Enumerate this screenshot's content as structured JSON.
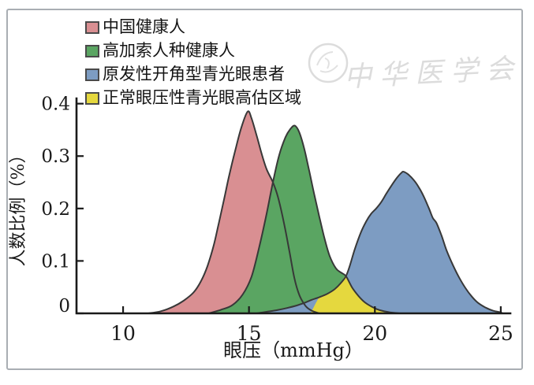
{
  "watermark": {
    "text": "中华医学会",
    "color": "#dcdcdc"
  },
  "chart_data": {
    "type": "area",
    "title": "",
    "xlabel": "眼压（mmHg）",
    "ylabel": "人数比例（%）",
    "xlim": [
      8.15,
      25.38
    ],
    "ylim": [
      0,
      0.41
    ],
    "grid": false,
    "legend_position": "top-left",
    "axis_color": "#1a1a1a",
    "outline_color": "#383838",
    "xticks": [
      10,
      15,
      20,
      25
    ],
    "xtick_labels": [
      "10",
      "15",
      "20",
      "25"
    ],
    "yticks": [
      0,
      0.1,
      0.2,
      0.3,
      0.4
    ],
    "ytick_labels": [
      "0",
      "0.1",
      "0.2",
      "0.3",
      "0.4"
    ],
    "series": [
      {
        "name": "中国健康人",
        "fill": "#d98f92",
        "outlined": true,
        "points": [
          [
            11.0,
            0
          ],
          [
            11.5,
            0.004
          ],
          [
            12.0,
            0.013
          ],
          [
            12.4,
            0.024
          ],
          [
            12.8,
            0.04
          ],
          [
            13.1,
            0.062
          ],
          [
            13.35,
            0.09
          ],
          [
            13.6,
            0.13
          ],
          [
            13.8,
            0.172
          ],
          [
            14.0,
            0.215
          ],
          [
            14.2,
            0.26
          ],
          [
            14.45,
            0.31
          ],
          [
            14.7,
            0.355
          ],
          [
            14.95,
            0.385
          ],
          [
            15.1,
            0.372
          ],
          [
            15.3,
            0.34
          ],
          [
            15.5,
            0.305
          ],
          [
            15.7,
            0.275
          ],
          [
            15.95,
            0.25
          ],
          [
            16.15,
            0.222
          ],
          [
            16.4,
            0.17
          ],
          [
            16.6,
            0.12
          ],
          [
            16.8,
            0.068
          ],
          [
            17.0,
            0.035
          ],
          [
            17.25,
            0.014
          ],
          [
            17.5,
            0.005
          ],
          [
            17.8,
            0
          ]
        ]
      },
      {
        "name": "高加索人种健康人",
        "fill": "#5aa562",
        "outlined": true,
        "points": [
          [
            13.4,
            0
          ],
          [
            13.9,
            0.007
          ],
          [
            14.35,
            0.016
          ],
          [
            14.75,
            0.036
          ],
          [
            15.1,
            0.07
          ],
          [
            15.4,
            0.125
          ],
          [
            15.7,
            0.19
          ],
          [
            15.95,
            0.25
          ],
          [
            16.2,
            0.302
          ],
          [
            16.45,
            0.336
          ],
          [
            16.65,
            0.352
          ],
          [
            16.82,
            0.358
          ],
          [
            17.0,
            0.345
          ],
          [
            17.2,
            0.313
          ],
          [
            17.4,
            0.27
          ],
          [
            17.6,
            0.225
          ],
          [
            17.8,
            0.183
          ],
          [
            18.0,
            0.143
          ],
          [
            18.2,
            0.11
          ],
          [
            18.45,
            0.086
          ],
          [
            18.65,
            0.078
          ],
          [
            18.85,
            0.071
          ],
          [
            19.1,
            0.049
          ],
          [
            19.35,
            0.033
          ],
          [
            19.6,
            0.021
          ],
          [
            19.9,
            0.012
          ],
          [
            20.2,
            0.006
          ],
          [
            20.6,
            0.002
          ],
          [
            21.0,
            0
          ]
        ]
      },
      {
        "name": "原发性开角型青光眼患者",
        "fill": "#7d9cc2",
        "outlined": true,
        "points": [
          [
            15.3,
            0
          ],
          [
            15.7,
            0.003
          ],
          [
            16.1,
            0.006
          ],
          [
            16.5,
            0.01
          ],
          [
            16.9,
            0.015
          ],
          [
            17.2,
            0.02
          ],
          [
            17.5,
            0.026
          ],
          [
            17.8,
            0.031
          ],
          [
            18.1,
            0.037
          ],
          [
            18.4,
            0.046
          ],
          [
            18.65,
            0.058
          ],
          [
            18.85,
            0.071
          ],
          [
            19.0,
            0.09
          ],
          [
            19.2,
            0.122
          ],
          [
            19.45,
            0.155
          ],
          [
            19.65,
            0.175
          ],
          [
            19.85,
            0.19
          ],
          [
            20.05,
            0.2
          ],
          [
            20.25,
            0.212
          ],
          [
            20.45,
            0.228
          ],
          [
            20.65,
            0.243
          ],
          [
            20.85,
            0.257
          ],
          [
            21.05,
            0.268
          ],
          [
            21.15,
            0.27
          ],
          [
            21.35,
            0.264
          ],
          [
            21.55,
            0.254
          ],
          [
            21.75,
            0.24
          ],
          [
            21.95,
            0.222
          ],
          [
            22.15,
            0.2
          ],
          [
            22.3,
            0.182
          ],
          [
            22.45,
            0.172
          ],
          [
            22.65,
            0.148
          ],
          [
            22.85,
            0.12
          ],
          [
            23.1,
            0.092
          ],
          [
            23.35,
            0.068
          ],
          [
            23.6,
            0.048
          ],
          [
            23.85,
            0.032
          ],
          [
            24.1,
            0.02
          ],
          [
            24.4,
            0.011
          ],
          [
            24.7,
            0.005
          ],
          [
            25.0,
            0.002
          ],
          [
            25.05,
            0
          ]
        ]
      },
      {
        "name": "正常眼压性青光眼高估区域",
        "fill": "#e5d83e",
        "outlined": false,
        "points": [
          [
            17.45,
            0
          ],
          [
            17.8,
            0.031
          ],
          [
            18.1,
            0.037
          ],
          [
            18.4,
            0.046
          ],
          [
            18.65,
            0.058
          ],
          [
            18.85,
            0.071
          ],
          [
            19.1,
            0.049
          ],
          [
            19.35,
            0.033
          ],
          [
            19.6,
            0.021
          ],
          [
            19.9,
            0.012
          ],
          [
            20.2,
            0.006
          ],
          [
            20.5,
            0.003
          ],
          [
            20.75,
            0
          ]
        ]
      }
    ]
  }
}
